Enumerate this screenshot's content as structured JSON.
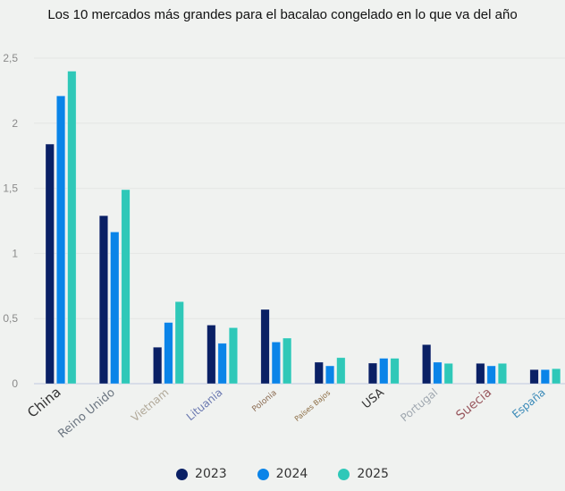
{
  "chart_data": {
    "type": "bar",
    "title": "Los 10 mercados más grandes para el bacalao congelado en lo que va del año",
    "xlabel": "",
    "ylabel": "",
    "ylim": [
      0,
      2.5
    ],
    "yticks": [
      0,
      0.5,
      1,
      1.5,
      2,
      2.5
    ],
    "ytick_labels": [
      "0",
      "0,5",
      "1",
      "1,5",
      "2",
      "2,5"
    ],
    "grid": true,
    "legend_position": "bottom",
    "categories": [
      "China",
      "Reino Unido",
      "Vietnam",
      "Lituania",
      "Polonia",
      "Países Bajos",
      "USA",
      "Portugal",
      "Suecia",
      "España"
    ],
    "category_label_colors": [
      "#333333",
      "#6b7580",
      "#b0a898",
      "#6a78b0",
      "#8a6a50",
      "#8a6a40",
      "#333333",
      "#a0a8b0",
      "#9a5a60",
      "#3a8ab8"
    ],
    "series": [
      {
        "name": "2023",
        "color": "#0a2065",
        "values": [
          1.84,
          1.29,
          0.28,
          0.45,
          0.57,
          0.165,
          0.158,
          0.3,
          0.156,
          0.108
        ]
      },
      {
        "name": "2024",
        "color": "#0a84e8",
        "values": [
          2.21,
          1.165,
          0.47,
          0.31,
          0.32,
          0.137,
          0.195,
          0.165,
          0.137,
          0.108
        ]
      },
      {
        "name": "2025",
        "color": "#2fc8b8",
        "values": [
          2.4,
          1.49,
          0.63,
          0.43,
          0.35,
          0.2,
          0.195,
          0.156,
          0.156,
          0.115
        ]
      }
    ]
  }
}
